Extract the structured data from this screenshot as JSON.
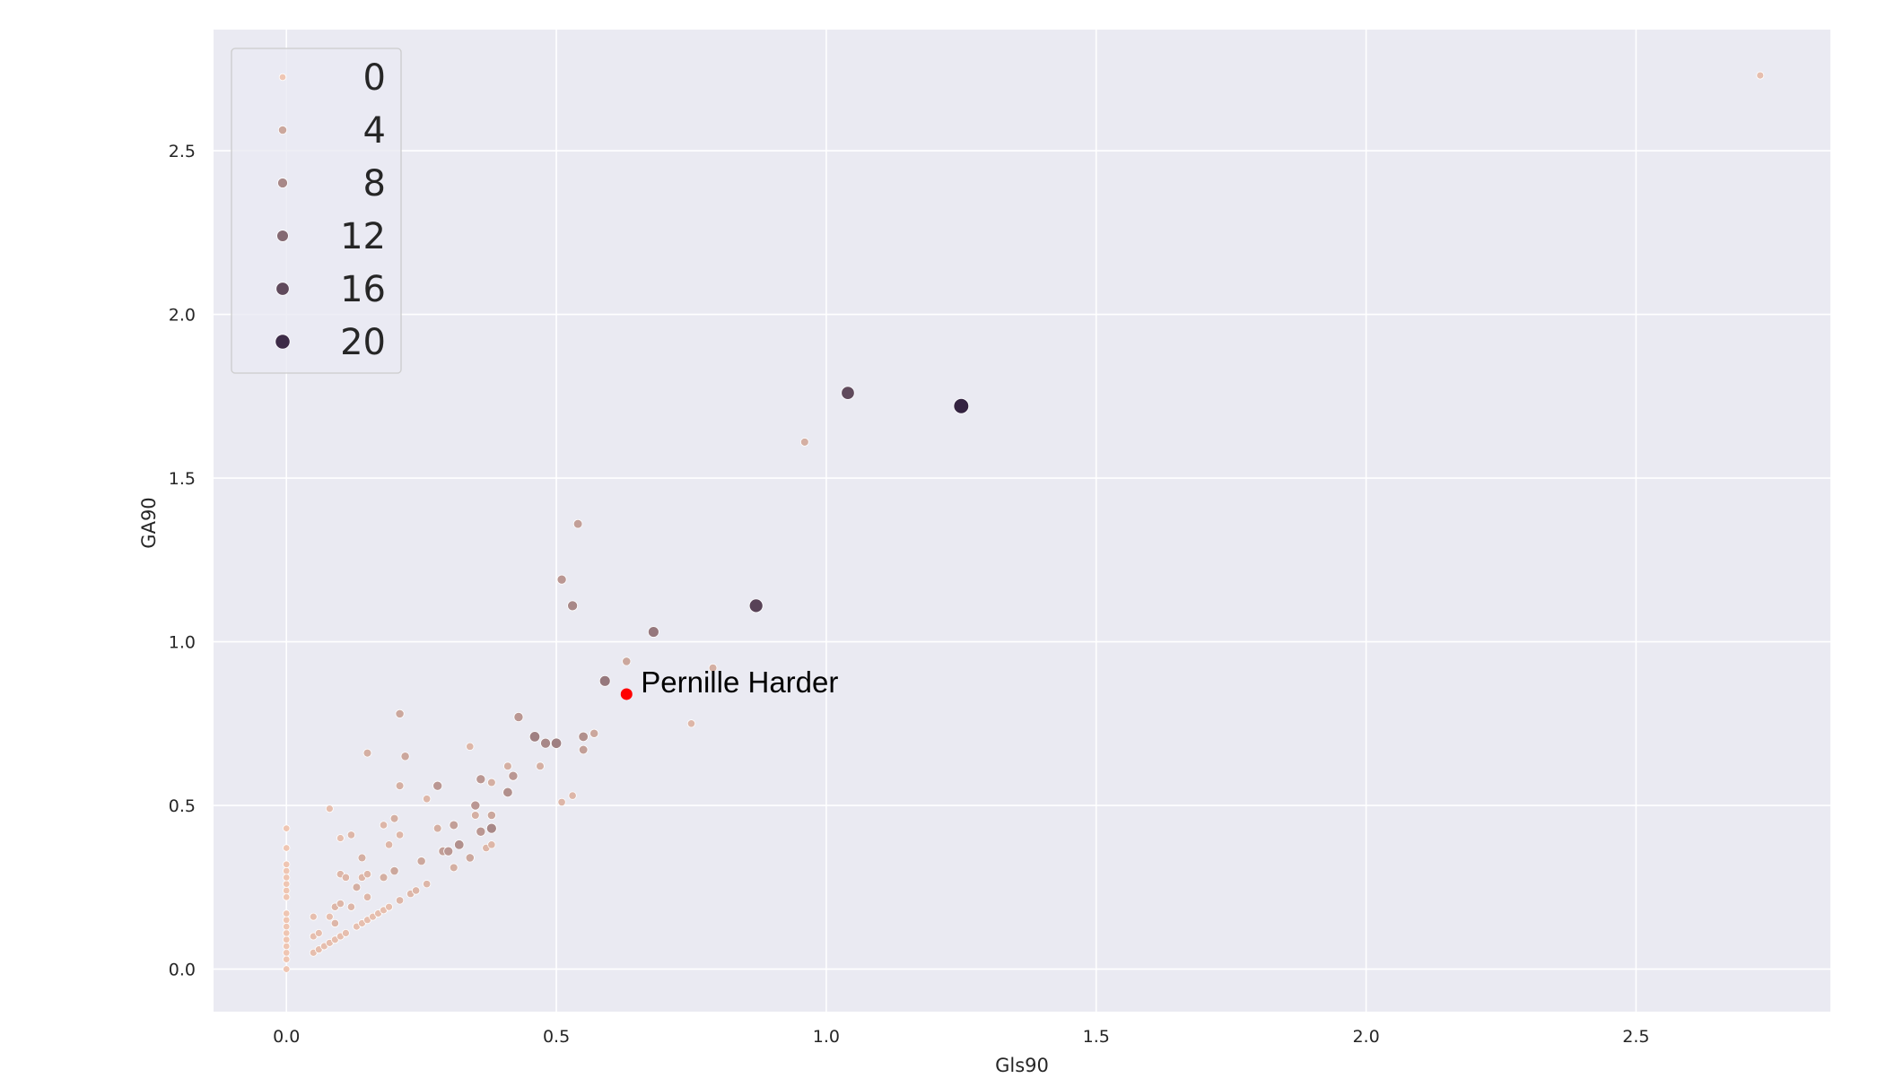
{
  "chart_data": {
    "type": "scatter",
    "xlabel": "Gls90",
    "ylabel": "GA90",
    "xlim": [
      -0.135,
      2.86
    ],
    "ylim": [
      -0.13,
      2.87
    ],
    "x_ticks": [
      "0.0",
      "0.5",
      "1.0",
      "1.5",
      "2.0",
      "2.5"
    ],
    "y_ticks": [
      "0.0",
      "0.5",
      "1.0",
      "1.5",
      "2.0",
      "2.5"
    ],
    "grid": true,
    "legend_position": "top-left",
    "hue_scale": {
      "min": 0,
      "max": 22,
      "low_color": "#efc6b3",
      "high_color": "#2b1b3c"
    },
    "legend": [
      {
        "label": "0",
        "value": 0
      },
      {
        "label": "4",
        "value": 4
      },
      {
        "label": "8",
        "value": 8
      },
      {
        "label": "12",
        "value": 12
      },
      {
        "label": "16",
        "value": 16
      },
      {
        "label": "20",
        "value": 20
      }
    ],
    "highlight": {
      "label": "Pernille Harder",
      "x": 0.63,
      "y": 0.84,
      "color": "#ff0000"
    },
    "points": [
      [
        0.0,
        0.0,
        0
      ],
      [
        0.0,
        0.03,
        0
      ],
      [
        0.0,
        0.05,
        0
      ],
      [
        0.0,
        0.07,
        0
      ],
      [
        0.0,
        0.09,
        0
      ],
      [
        0.0,
        0.11,
        0
      ],
      [
        0.0,
        0.13,
        0
      ],
      [
        0.0,
        0.15,
        0
      ],
      [
        0.0,
        0.17,
        0
      ],
      [
        0.0,
        0.22,
        0
      ],
      [
        0.0,
        0.24,
        0
      ],
      [
        0.0,
        0.26,
        0
      ],
      [
        0.0,
        0.28,
        0
      ],
      [
        0.0,
        0.3,
        0
      ],
      [
        0.0,
        0.32,
        0
      ],
      [
        0.0,
        0.37,
        0
      ],
      [
        0.0,
        0.43,
        0
      ],
      [
        0.05,
        0.05,
        1
      ],
      [
        0.06,
        0.06,
        1
      ],
      [
        0.07,
        0.07,
        1
      ],
      [
        0.08,
        0.08,
        1
      ],
      [
        0.09,
        0.09,
        1
      ],
      [
        0.1,
        0.1,
        1
      ],
      [
        0.11,
        0.11,
        1
      ],
      [
        0.13,
        0.13,
        1
      ],
      [
        0.14,
        0.14,
        1
      ],
      [
        0.15,
        0.15,
        1
      ],
      [
        0.16,
        0.16,
        1
      ],
      [
        0.17,
        0.17,
        1
      ],
      [
        0.18,
        0.18,
        1
      ],
      [
        0.19,
        0.19,
        1
      ],
      [
        0.21,
        0.21,
        2
      ],
      [
        0.23,
        0.23,
        2
      ],
      [
        0.24,
        0.24,
        2
      ],
      [
        0.26,
        0.26,
        2
      ],
      [
        0.05,
        0.1,
        1
      ],
      [
        0.05,
        0.16,
        1
      ],
      [
        0.06,
        0.11,
        1
      ],
      [
        0.08,
        0.16,
        1
      ],
      [
        0.09,
        0.14,
        2
      ],
      [
        0.09,
        0.19,
        2
      ],
      [
        0.1,
        0.2,
        2
      ],
      [
        0.1,
        0.29,
        2
      ],
      [
        0.1,
        0.4,
        1
      ],
      [
        0.08,
        0.49,
        1
      ],
      [
        0.11,
        0.28,
        2
      ],
      [
        0.12,
        0.19,
        2
      ],
      [
        0.12,
        0.41,
        2
      ],
      [
        0.13,
        0.25,
        3
      ],
      [
        0.14,
        0.28,
        2
      ],
      [
        0.14,
        0.34,
        3
      ],
      [
        0.15,
        0.22,
        2
      ],
      [
        0.15,
        0.29,
        2
      ],
      [
        0.15,
        0.66,
        3
      ],
      [
        0.18,
        0.28,
        3
      ],
      [
        0.18,
        0.44,
        2
      ],
      [
        0.19,
        0.38,
        2
      ],
      [
        0.2,
        0.3,
        4
      ],
      [
        0.2,
        0.46,
        3
      ],
      [
        0.21,
        0.41,
        2
      ],
      [
        0.21,
        0.56,
        3
      ],
      [
        0.21,
        0.78,
        4
      ],
      [
        0.22,
        0.65,
        4
      ],
      [
        0.25,
        0.33,
        4
      ],
      [
        0.26,
        0.52,
        2
      ],
      [
        0.28,
        0.43,
        3
      ],
      [
        0.28,
        0.56,
        6
      ],
      [
        0.29,
        0.36,
        5
      ],
      [
        0.3,
        0.36,
        6
      ],
      [
        0.31,
        0.31,
        3
      ],
      [
        0.31,
        0.44,
        5
      ],
      [
        0.32,
        0.38,
        7
      ],
      [
        0.34,
        0.34,
        4
      ],
      [
        0.34,
        0.68,
        2
      ],
      [
        0.35,
        0.47,
        3
      ],
      [
        0.35,
        0.5,
        6
      ],
      [
        0.36,
        0.42,
        6
      ],
      [
        0.36,
        0.58,
        6
      ],
      [
        0.37,
        0.37,
        2
      ],
      [
        0.38,
        0.38,
        2
      ],
      [
        0.38,
        0.43,
        8
      ],
      [
        0.38,
        0.47,
        4
      ],
      [
        0.38,
        0.57,
        3
      ],
      [
        0.41,
        0.54,
        7
      ],
      [
        0.41,
        0.62,
        3
      ],
      [
        0.42,
        0.59,
        6
      ],
      [
        0.43,
        0.77,
        6
      ],
      [
        0.46,
        0.71,
        9
      ],
      [
        0.47,
        0.62,
        3
      ],
      [
        0.48,
        0.69,
        8
      ],
      [
        0.5,
        0.69,
        9
      ],
      [
        0.51,
        0.51,
        2
      ],
      [
        0.51,
        1.19,
        6
      ],
      [
        0.53,
        0.53,
        2
      ],
      [
        0.53,
        1.11,
        8
      ],
      [
        0.54,
        1.36,
        5
      ],
      [
        0.55,
        0.67,
        5
      ],
      [
        0.55,
        0.71,
        7
      ],
      [
        0.57,
        0.72,
        4
      ],
      [
        0.59,
        0.88,
        10
      ],
      [
        0.63,
        0.94,
        4
      ],
      [
        0.68,
        1.03,
        10
      ],
      [
        0.75,
        0.75,
        2
      ],
      [
        0.79,
        0.92,
        3
      ],
      [
        0.87,
        1.11,
        17
      ],
      [
        0.96,
        1.61,
        3
      ],
      [
        1.04,
        1.76,
        16
      ],
      [
        1.25,
        1.72,
        21
      ],
      [
        2.73,
        2.73,
        1
      ]
    ]
  }
}
